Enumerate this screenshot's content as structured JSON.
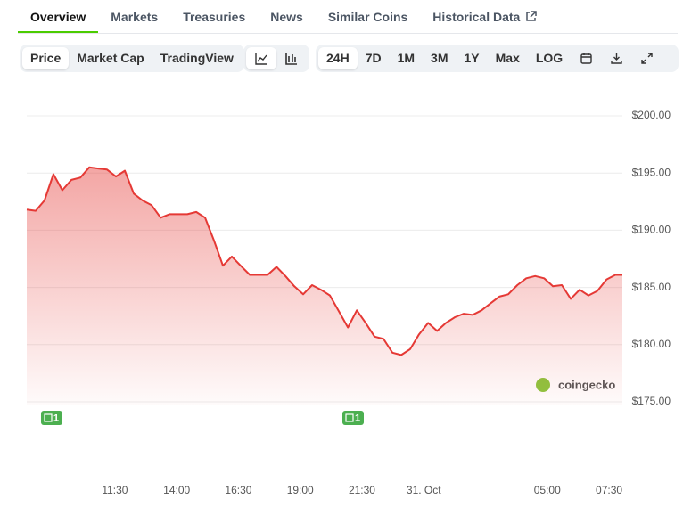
{
  "tabs": [
    "Overview",
    "Markets",
    "Treasuries",
    "News",
    "Similar Coins",
    "Historical Data"
  ],
  "toolbar": {
    "view": [
      "Price",
      "Market Cap",
      "TradingView"
    ],
    "ranges": [
      "24H",
      "7D",
      "1M",
      "3M",
      "1Y",
      "Max",
      "LOG"
    ]
  },
  "watermark": "coingecko",
  "chart_data": {
    "type": "line",
    "color": "#e53935",
    "fill": true,
    "grid": true,
    "x": [
      7.93,
      8.29,
      8.65,
      9.01,
      9.37,
      9.74,
      10.1,
      10.46,
      10.82,
      11.18,
      11.54,
      11.9,
      12.26,
      12.62,
      12.98,
      13.35,
      13.71,
      14.07,
      14.43,
      14.79,
      15.15,
      15.51,
      15.87,
      16.23,
      16.59,
      16.96,
      17.32,
      17.68,
      18.04,
      18.4,
      18.76,
      19.12,
      19.48,
      19.84,
      20.2,
      20.57,
      20.93,
      21.29,
      21.65,
      22.01,
      22.37,
      22.73,
      23.09,
      23.45,
      23.81,
      24.18,
      24.54,
      24.9,
      25.26,
      25.62,
      25.98,
      26.34,
      26.7,
      27.06,
      27.42,
      27.79,
      28.15,
      28.51,
      28.87,
      29.23,
      29.59,
      29.95,
      30.31,
      30.67,
      31.03,
      31.4,
      31.76,
      32.04
    ],
    "values": [
      191.8,
      191.7,
      192.6,
      194.9,
      193.5,
      194.4,
      194.6,
      195.5,
      195.4,
      195.3,
      194.7,
      195.2,
      193.2,
      192.6,
      192.2,
      191.1,
      191.4,
      191.4,
      191.4,
      191.6,
      191.1,
      189.1,
      186.9,
      187.7,
      186.9,
      186.1,
      186.1,
      186.1,
      186.8,
      186.0,
      185.1,
      184.4,
      185.2,
      184.8,
      184.3,
      182.9,
      181.5,
      183.0,
      181.9,
      180.7,
      180.5,
      179.3,
      179.1,
      179.6,
      180.9,
      181.9,
      181.2,
      181.9,
      182.4,
      182.7,
      182.6,
      183.0,
      183.6,
      184.2,
      184.4,
      185.2,
      185.8,
      186.0,
      185.8,
      185.1,
      185.2,
      184.0,
      184.8,
      184.3,
      184.7,
      185.7,
      186.1,
      186.1
    ],
    "xlim": [
      7.93,
      32.04
    ],
    "xticks": [
      {
        "value": 11.5,
        "label": "11:30"
      },
      {
        "value": 14,
        "label": "14:00"
      },
      {
        "value": 16.5,
        "label": "16:30"
      },
      {
        "value": 19,
        "label": "19:00"
      },
      {
        "value": 21.5,
        "label": "21:30"
      },
      {
        "value": 24,
        "label": "31. Oct"
      },
      {
        "value": 29,
        "label": "05:00"
      },
      {
        "value": 31.5,
        "label": "07:30"
      }
    ],
    "ylim": [
      175,
      200
    ],
    "yticks": [
      {
        "value": 175,
        "label": "$175.00"
      },
      {
        "value": 180,
        "label": "$180.00"
      },
      {
        "value": 185,
        "label": "$185.00"
      },
      {
        "value": 190,
        "label": "$190.00"
      },
      {
        "value": 195,
        "label": "$195.00"
      },
      {
        "value": 200,
        "label": "$200.00"
      }
    ],
    "annotations": [
      {
        "x": 8.94,
        "text": "1"
      },
      {
        "x": 21.14,
        "text": "1"
      }
    ]
  }
}
